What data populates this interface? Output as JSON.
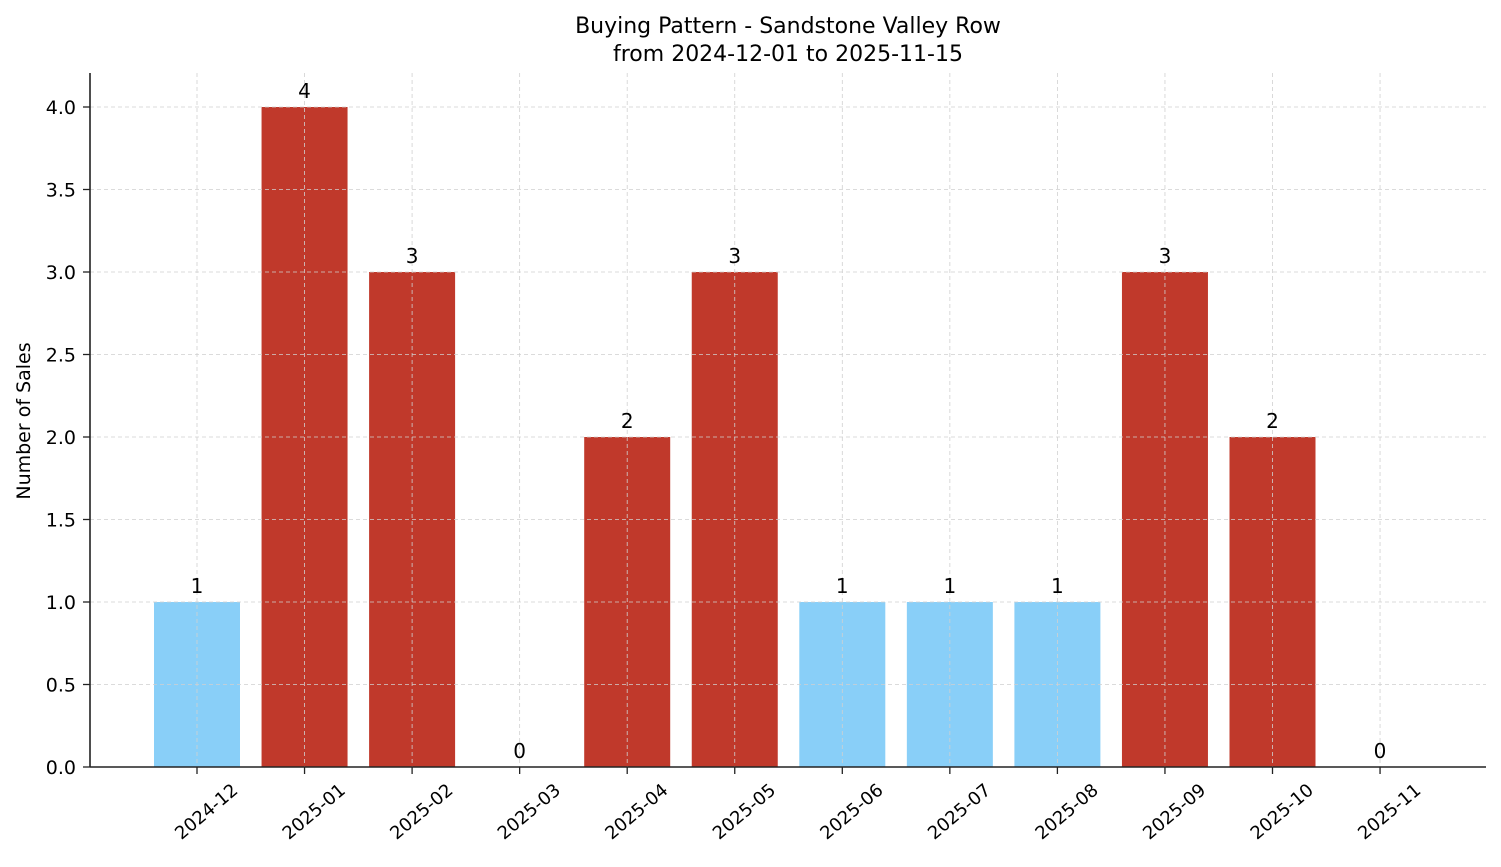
{
  "chart_data": {
    "type": "bar",
    "title": "Buying Pattern - Sandstone Valley Row",
    "subtitle": "from 2024-12-01 to 2025-11-15",
    "xlabel": "",
    "ylabel": "Number of Sales",
    "categories": [
      "2024-12",
      "2025-01",
      "2025-02",
      "2025-03",
      "2025-04",
      "2025-05",
      "2025-06",
      "2025-07",
      "2025-08",
      "2025-09",
      "2025-10",
      "2025-11"
    ],
    "values": [
      1,
      4,
      3,
      0,
      2,
      3,
      1,
      1,
      1,
      3,
      2,
      0
    ],
    "value_labels": [
      "1",
      "4",
      "3",
      "0",
      "2",
      "3",
      "1",
      "1",
      "1",
      "3",
      "2",
      "0"
    ],
    "bar_colors": [
      "#89cff8",
      "#c0392b",
      "#c0392b",
      "#c0392b",
      "#c0392b",
      "#c0392b",
      "#89cff8",
      "#89cff8",
      "#89cff8",
      "#c0392b",
      "#c0392b",
      "#c0392b"
    ],
    "ylim": [
      0,
      4.2
    ],
    "yticks": [
      0.0,
      0.5,
      1.0,
      1.5,
      2.0,
      2.5,
      3.0,
      3.5,
      4.0
    ],
    "ytick_labels": [
      "0.0",
      "0.5",
      "1.0",
      "1.5",
      "2.0",
      "2.5",
      "3.0",
      "3.5",
      "4.0"
    ],
    "grid": true,
    "legend": null,
    "colors": {
      "high": "#c0392b",
      "low": "#89cff8",
      "grid": "#d0d0d0",
      "axis": "#222222"
    }
  }
}
